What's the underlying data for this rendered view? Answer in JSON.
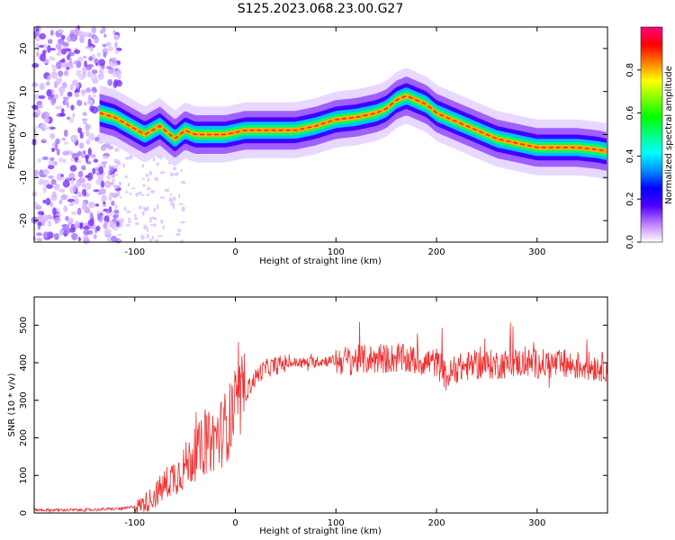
{
  "chart_data": [
    {
      "type": "heatmap",
      "title": "S125.2023.068.23.00.G27",
      "xlabel": "Height of straight line (km)",
      "ylabel": "Frequency (Hz)",
      "xlim": [
        -200,
        370
      ],
      "ylim": [
        -25,
        25
      ],
      "x_ticks": [
        "-100",
        "0",
        "100",
        "200",
        "300"
      ],
      "y_ticks": [
        "-20",
        "-10",
        "0",
        "10",
        "20"
      ],
      "colorbar": {
        "label": "Normalized spectral amplitude",
        "range": [
          0,
          1
        ],
        "ticks": [
          "0.0",
          "0.2",
          "0.4",
          "0.6",
          "0.8"
        ],
        "colors": [
          "#ffffff",
          "#c080ff",
          "#5000ff",
          "#0000ff",
          "#0090ff",
          "#00ffff",
          "#00ff80",
          "#00ff00",
          "#80ff00",
          "#ffff00",
          "#ff8000",
          "#ff0000",
          "#ff0080"
        ]
      },
      "ridge": {
        "x": [
          -135,
          -120,
          -105,
          -90,
          -75,
          -60,
          -50,
          -40,
          -30,
          -20,
          -10,
          0,
          10,
          20,
          30,
          40,
          60,
          80,
          100,
          120,
          140,
          150,
          160,
          170,
          180,
          190,
          200,
          220,
          240,
          260,
          280,
          300,
          320,
          340,
          360,
          370
        ],
        "y": [
          5,
          4,
          2,
          0,
          2,
          -1,
          1,
          0,
          0,
          0,
          0,
          0.5,
          1,
          1,
          1,
          1,
          1,
          2,
          3.5,
          4,
          5,
          6,
          8,
          9,
          8,
          7,
          5,
          3,
          1,
          -1,
          -2,
          -3,
          -3,
          -3,
          -3.5,
          -4
        ]
      }
    },
    {
      "type": "line",
      "xlabel": "Height of straight line (km)",
      "ylabel": "SNR (10 * v/v)",
      "xlim": [
        -200,
        370
      ],
      "ylim": [
        0,
        575
      ],
      "x_ticks": [
        "-100",
        "0",
        "100",
        "200",
        "300"
      ],
      "y_ticks": [
        "0",
        "100",
        "200",
        "300",
        "400",
        "500"
      ],
      "series": [
        {
          "color": "#f03030",
          "x": [
            -200,
            -150,
            -110,
            -95,
            -85,
            -75,
            -65,
            -55,
            -45,
            -35,
            -25,
            -15,
            -10,
            -5,
            0,
            5,
            10,
            15,
            20,
            25,
            30,
            40,
            50,
            60,
            70,
            80,
            90,
            100,
            120,
            140,
            160,
            180,
            200,
            210,
            220,
            240,
            260,
            280,
            300,
            320,
            340,
            360,
            370
          ],
          "y": [
            8,
            8,
            12,
            20,
            35,
            60,
            90,
            110,
            140,
            170,
            190,
            210,
            230,
            250,
            280,
            300,
            320,
            340,
            360,
            375,
            385,
            392,
            398,
            400,
            400,
            402,
            405,
            405,
            408,
            410,
            412,
            405,
            400,
            360,
            385,
            395,
            395,
            400,
            398,
            395,
            392,
            390,
            388
          ]
        }
      ]
    }
  ]
}
